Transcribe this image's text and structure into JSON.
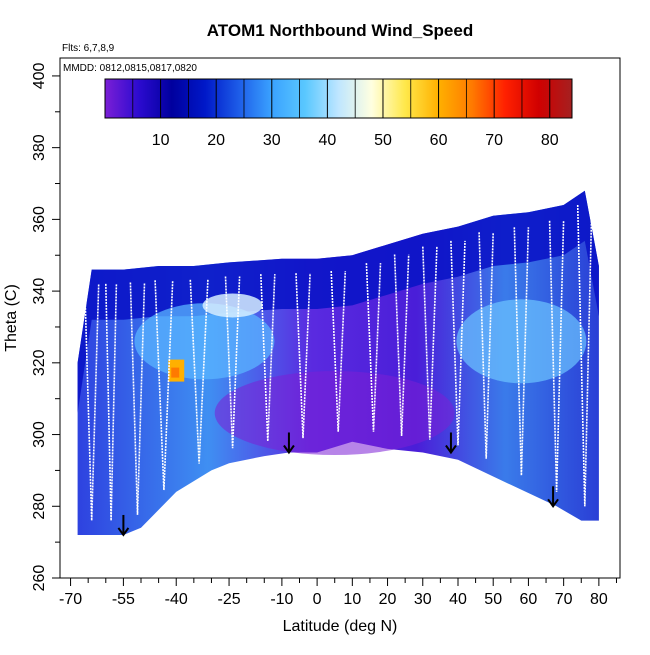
{
  "chart_data": {
    "type": "heatmap",
    "title": "ATOM1 Northbound Wind_Speed",
    "subtitle_flights": "Flts: 6,7,8,9",
    "subtitle_dates": "MMDD: 0812,0815,0817,0820",
    "xlabel": "Latitude (deg N)",
    "ylabel": "Theta (C)",
    "xlim": [
      -73,
      86
    ],
    "ylim": [
      260,
      405
    ],
    "x_ticks": [
      -70,
      -55,
      -40,
      -25,
      -10,
      0,
      10,
      20,
      30,
      40,
      50,
      60,
      70,
      80
    ],
    "y_ticks": [
      260,
      280,
      300,
      320,
      340,
      360,
      380,
      400
    ],
    "colorbar": {
      "min": 0,
      "max": 84,
      "ticks": [
        10,
        20,
        30,
        40,
        50,
        60,
        70,
        80
      ],
      "colors": [
        "#7b1fd6",
        "#2d0bd0",
        "#00009e",
        "#0018c8",
        "#1d5ce8",
        "#3aa2ff",
        "#5ac8ff",
        "#bfe6ff",
        "#ffffe0",
        "#ffe84a",
        "#ffb000",
        "#ff7a00",
        "#ff2000",
        "#d00000",
        "#a52020"
      ]
    },
    "surface_boundary": [
      [
        -68,
        272
      ],
      [
        -55,
        272
      ],
      [
        -50,
        274
      ],
      [
        -40,
        284
      ],
      [
        -30,
        290
      ],
      [
        -25,
        292
      ],
      [
        -15,
        294
      ],
      [
        -8,
        295
      ],
      [
        0,
        295
      ],
      [
        10,
        298
      ],
      [
        20,
        296
      ],
      [
        30,
        295
      ],
      [
        40,
        293
      ],
      [
        55,
        286
      ],
      [
        68,
        280
      ],
      [
        75,
        276
      ],
      [
        80,
        276
      ]
    ],
    "upper_boundary": [
      [
        -68,
        320
      ],
      [
        -64,
        346
      ],
      [
        -55,
        346
      ],
      [
        -45,
        347
      ],
      [
        -35,
        347
      ],
      [
        -25,
        348
      ],
      [
        -10,
        349
      ],
      [
        0,
        349
      ],
      [
        10,
        350
      ],
      [
        20,
        353
      ],
      [
        30,
        356
      ],
      [
        40,
        358
      ],
      [
        50,
        361
      ],
      [
        60,
        362
      ],
      [
        70,
        364
      ],
      [
        76,
        368
      ],
      [
        80,
        347
      ]
    ],
    "high_wind_patch": {
      "lat": -40,
      "theta": 317,
      "value": 60
    },
    "arrows": [
      {
        "lat": -55,
        "theta": 272
      },
      {
        "lat": -8,
        "theta": 295
      },
      {
        "lat": 38,
        "theta": 295
      },
      {
        "lat": 67,
        "theta": 280
      }
    ],
    "flight_profiles": [
      {
        "lat0": -66,
        "lat1": -62
      },
      {
        "lat0": -60,
        "lat1": -57
      },
      {
        "lat0": -53,
        "lat1": -49
      },
      {
        "lat0": -46,
        "lat1": -41
      },
      {
        "lat0": -36,
        "lat1": -31
      },
      {
        "lat0": -26,
        "lat1": -22
      },
      {
        "lat0": -16,
        "lat1": -12
      },
      {
        "lat0": -6,
        "lat1": -2
      },
      {
        "lat0": 4,
        "lat1": 8
      },
      {
        "lat0": 14,
        "lat1": 18
      },
      {
        "lat0": 22,
        "lat1": 26
      },
      {
        "lat0": 30,
        "lat1": 34
      },
      {
        "lat0": 38,
        "lat1": 42
      },
      {
        "lat0": 46,
        "lat1": 50
      },
      {
        "lat0": 56,
        "lat1": 60
      },
      {
        "lat0": 66,
        "lat1": 70
      },
      {
        "lat0": 74,
        "lat1": 78
      }
    ]
  }
}
